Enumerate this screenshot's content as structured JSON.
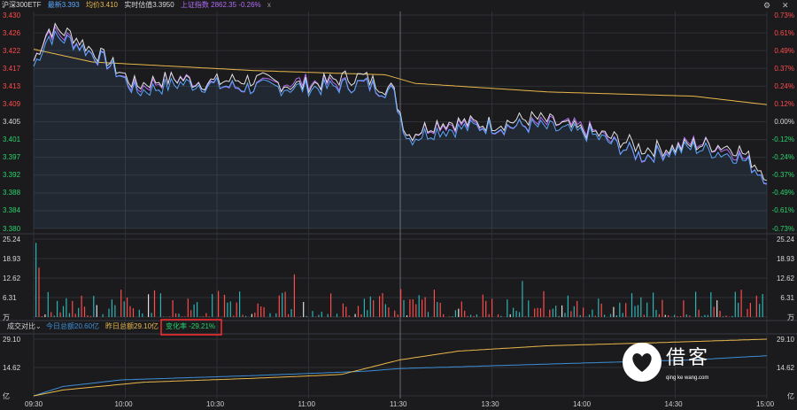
{
  "header": {
    "name": "沪深300ETF",
    "latest": "最新3.393",
    "avg": "均价3.410",
    "iopv": "实时估值3.3950",
    "index": "上证指数 2862.35  -0.26%",
    "close": "x"
  },
  "window_controls": {
    "settings": "⚙",
    "close": "✕"
  },
  "price_axis_left": [
    "3.430",
    "3.426",
    "3.422",
    "3.417",
    "3.413",
    "3.409",
    "3.405",
    "3.401",
    "3.397",
    "3.392",
    "3.388",
    "3.384",
    "3.380"
  ],
  "price_axis_right": [
    "0.73%",
    "0.61%",
    "0.49%",
    "0.37%",
    "0.24%",
    "0.12%",
    "0.00%",
    "-0.12%",
    "-0.24%",
    "-0.37%",
    "-0.49%",
    "-0.61%",
    "-0.73%"
  ],
  "volume_axis_left": [
    "25.24",
    "18.93",
    "12.62",
    "6.31",
    "万"
  ],
  "volume_axis_right": [
    "25.24",
    "18.93",
    "12.62",
    "6.31",
    "万"
  ],
  "amount_bar": {
    "label": "成交对比",
    "dropdown": "⌄",
    "today": "今日总额20.60亿",
    "yesterday": "昨日总额29.10亿",
    "change": "变化率 -29.21%"
  },
  "amount_axis_left": [
    "29.10",
    "14.62",
    "亿"
  ],
  "amount_axis_right": [
    "29.10",
    "14.62",
    "亿"
  ],
  "time_axis": [
    "09:30",
    "10:00",
    "10:30",
    "11:00",
    "11:30",
    "13:30",
    "14:00",
    "14:30",
    "15:00"
  ],
  "watermark": {
    "main": "借客",
    "sub": "qing ke wang.com"
  },
  "colors": {
    "background": "#1b1b1e",
    "grid": "#2f3036",
    "price_line": "#5aa8ff",
    "white_line": "#e0e0e0",
    "index_line": "#b06cf0",
    "avg_line": "#e9b84a",
    "up": "#ff4a4a",
    "down": "#29d36a",
    "today_amount": "#3d8fd8",
    "yesterday_amount": "#e9b84a",
    "highlight_box": "#ff2a2a"
  },
  "icons": {
    "settings": "gear-icon",
    "close": "close-icon",
    "dropdown": "chevron-down-icon"
  }
}
